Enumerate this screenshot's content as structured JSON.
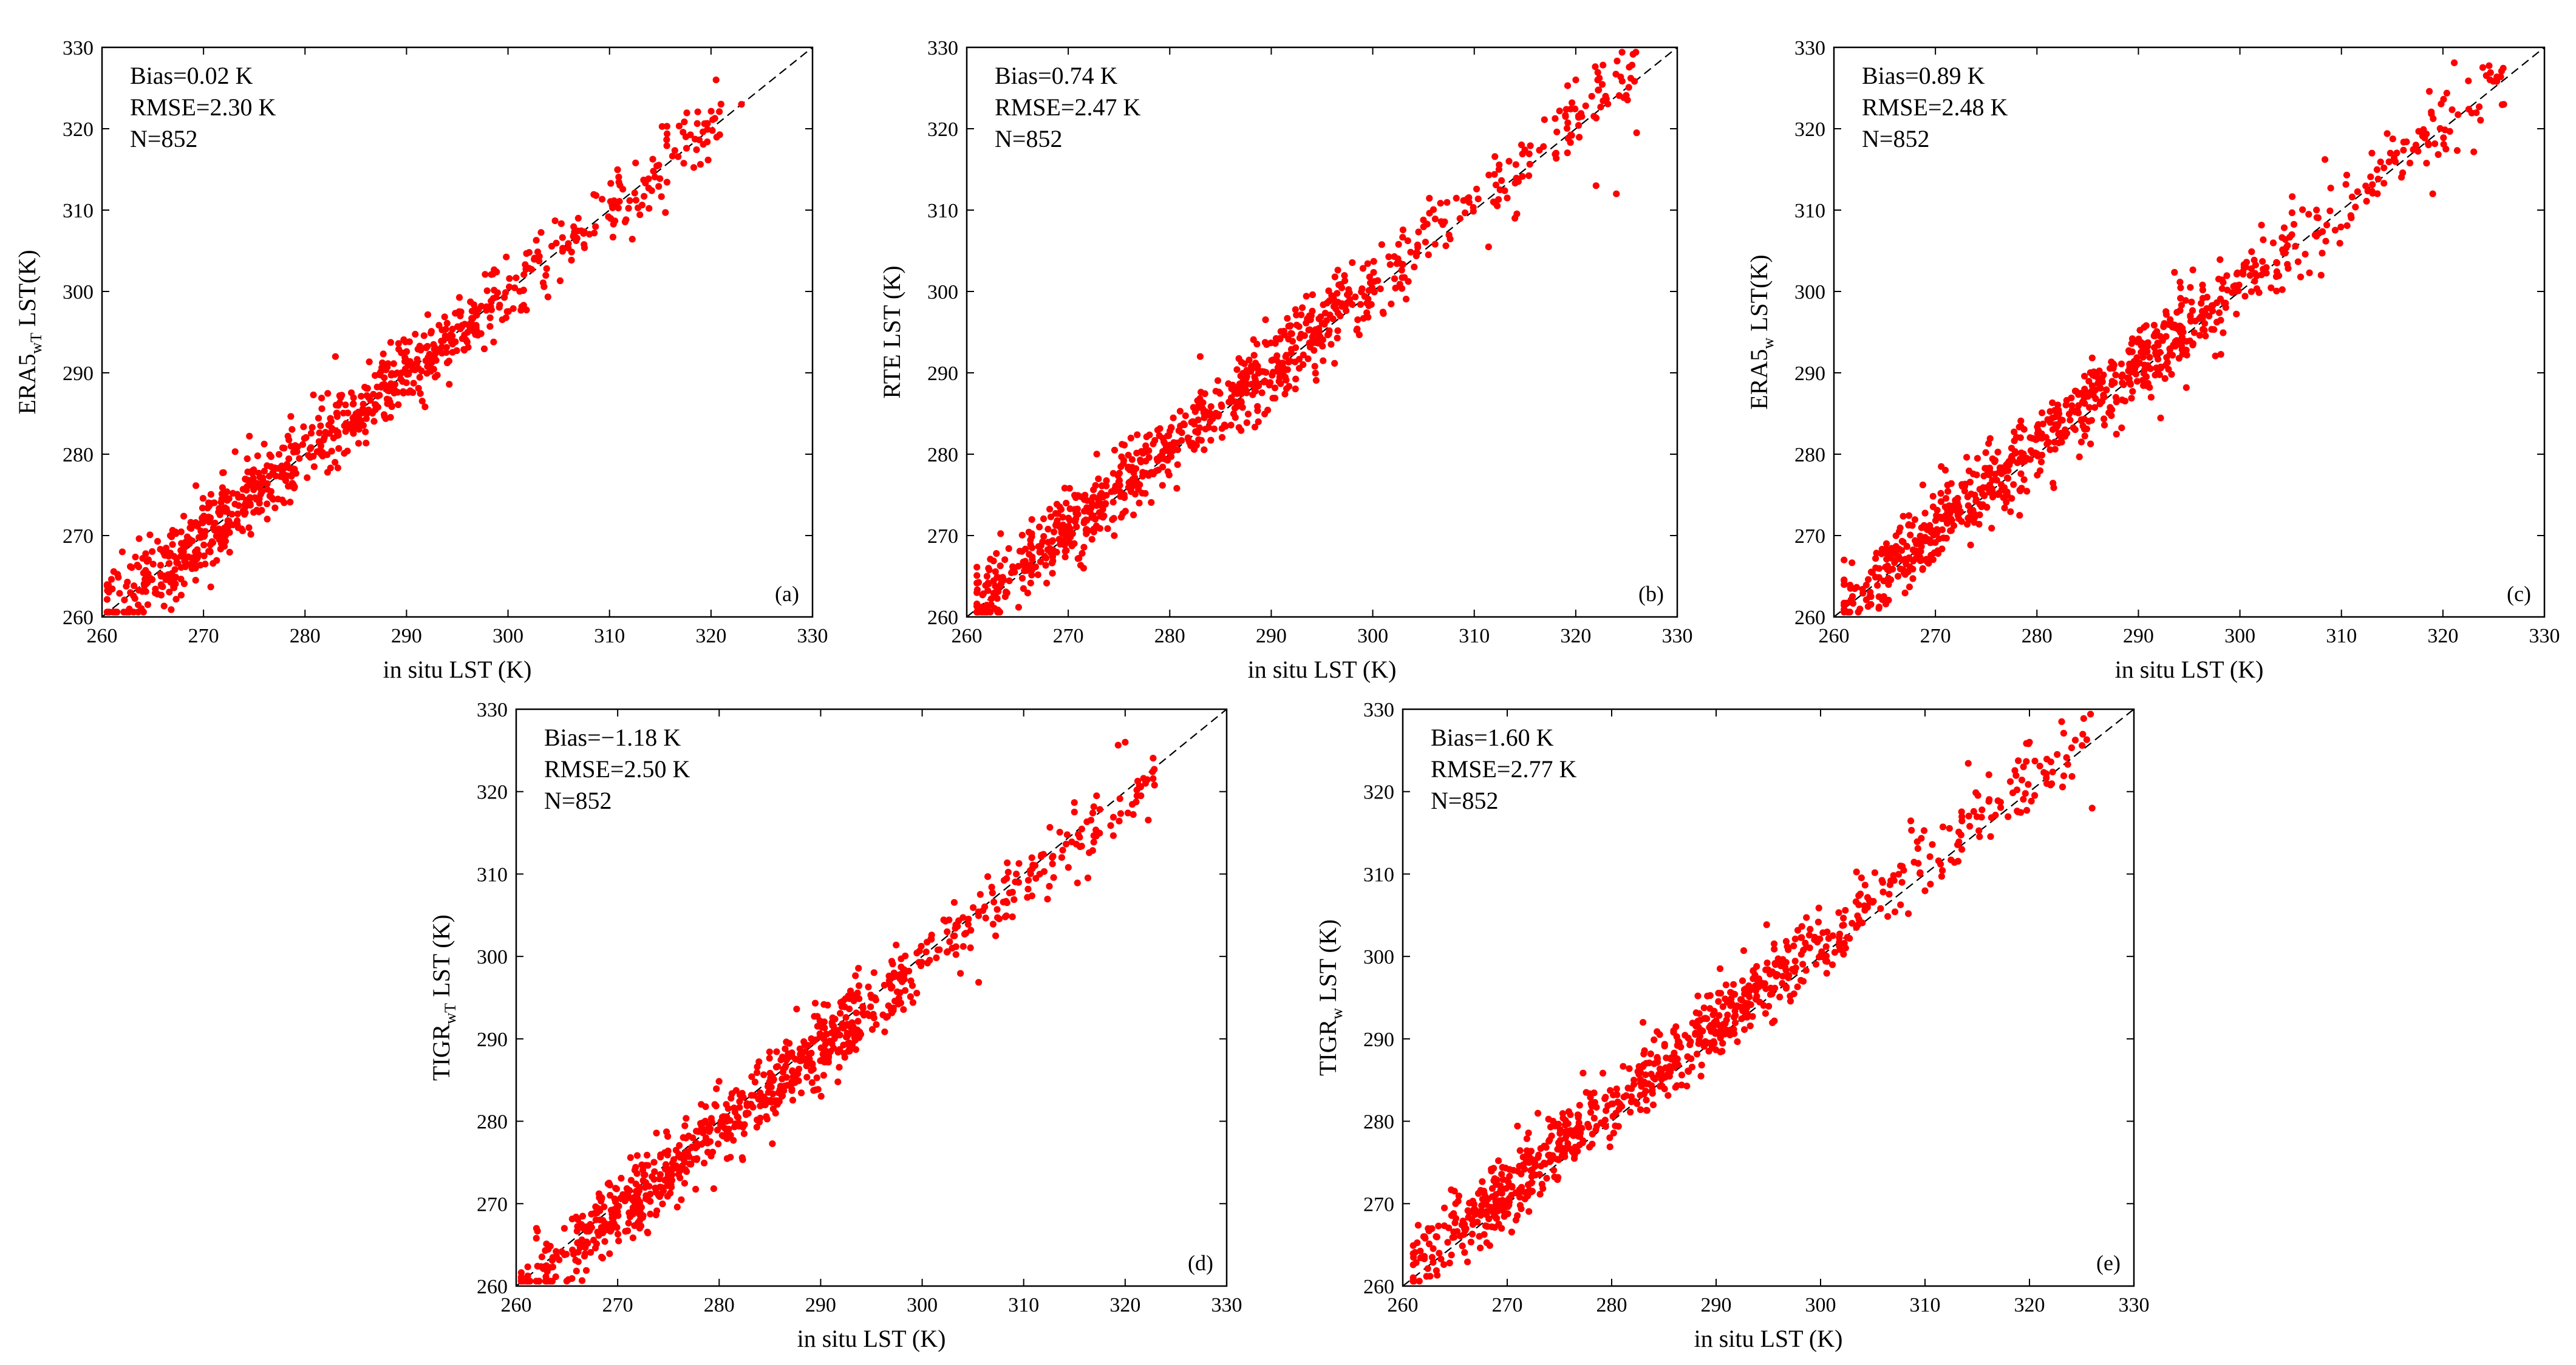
{
  "figure": {
    "description_free": true
  },
  "chart_data": [
    {
      "panel": "(a)",
      "type": "scatter",
      "xlabel": "in situ LST (K)",
      "ylabel_main": "ERA5",
      "ylabel_sub": "wT",
      "ylabel_tail": " LST(K)",
      "xlim": [
        260,
        330
      ],
      "ylim": [
        260,
        330
      ],
      "xticks": [
        "260",
        "270",
        "280",
        "290",
        "300",
        "310",
        "320",
        "330"
      ],
      "yticks": [
        "260",
        "270",
        "280",
        "290",
        "300",
        "310",
        "320",
        "330"
      ],
      "stats": [
        "Bias=0.02 K",
        "RMSE=2.30 K",
        "N=852"
      ],
      "bias": 0.02,
      "rmse": 2.3,
      "n": 852,
      "x_range": [
        260.5,
        321
      ],
      "seed": 11,
      "color": "#ff0000",
      "outliers": [
        [
          320.5,
          326
        ],
        [
          323,
          323
        ],
        [
          262,
          268
        ],
        [
          283,
          292
        ]
      ]
    },
    {
      "panel": "(b)",
      "type": "scatter",
      "xlabel": "in situ LST (K)",
      "ylabel_main": "RTE LST (K)",
      "ylabel_sub": "",
      "ylabel_tail": "",
      "xlim": [
        260,
        330
      ],
      "ylim": [
        260,
        330
      ],
      "xticks": [
        "260",
        "270",
        "280",
        "290",
        "300",
        "310",
        "320",
        "330"
      ],
      "yticks": [
        "260",
        "270",
        "280",
        "290",
        "300",
        "310",
        "320",
        "330"
      ],
      "stats": [
        "Bias=0.74 K",
        "RMSE=2.47 K",
        "N=852"
      ],
      "bias": 0.74,
      "rmse": 2.47,
      "n": 852,
      "x_range": [
        261,
        326
      ],
      "seed": 23,
      "color": "#ff0000",
      "outliers": [
        [
          320,
          326
        ],
        [
          326,
          319.5
        ],
        [
          324,
          312
        ],
        [
          322,
          313
        ],
        [
          283,
          292
        ],
        [
          314,
          309
        ],
        [
          262,
          265
        ]
      ]
    },
    {
      "panel": "(c)",
      "type": "scatter",
      "xlabel": "in situ LST (K)",
      "ylabel_main": "ERA5",
      "ylabel_sub": "w",
      "ylabel_tail": " LST(K)",
      "xlim": [
        260,
        330
      ],
      "ylim": [
        260,
        330
      ],
      "xticks": [
        "260",
        "270",
        "280",
        "290",
        "300",
        "310",
        "320",
        "330"
      ],
      "yticks": [
        "260",
        "270",
        "280",
        "290",
        "300",
        "310",
        "320",
        "330"
      ],
      "stats": [
        "Bias=0.89 K",
        "RMSE=2.48 K",
        "N=852"
      ],
      "bias": 0.89,
      "rmse": 2.48,
      "n": 852,
      "x_range": [
        261,
        326
      ],
      "seed": 37,
      "color": "#ff0000",
      "outliers": [
        [
          313,
          317
        ],
        [
          326,
          323
        ],
        [
          319,
          312
        ],
        [
          261,
          267
        ],
        [
          308,
          302
        ]
      ]
    },
    {
      "panel": "(d)",
      "type": "scatter",
      "xlabel": "in situ LST (K)",
      "ylabel_main": "TIGR",
      "ylabel_sub": "wT",
      "ylabel_tail": " LST (K)",
      "xlim": [
        260,
        330
      ],
      "ylim": [
        260,
        330
      ],
      "xticks": [
        "260",
        "270",
        "280",
        "290",
        "300",
        "310",
        "320",
        "330"
      ],
      "yticks": [
        "260",
        "270",
        "280",
        "290",
        "300",
        "310",
        "320",
        "330"
      ],
      "stats": [
        "Bias=−1.18 K",
        "RMSE=2.50 K",
        "N=852"
      ],
      "bias": -1.18,
      "rmse": 2.5,
      "n": 852,
      "x_range": [
        260.5,
        323
      ],
      "seed": 53,
      "color": "#ff0000",
      "outliers": [
        [
          320,
          326
        ],
        [
          322,
          321
        ],
        [
          262,
          267
        ]
      ]
    },
    {
      "panel": "(e)",
      "type": "scatter",
      "xlabel": "in situ LST (K)",
      "ylabel_main": "TIGR",
      "ylabel_sub": "w",
      "ylabel_tail": " LST (K)",
      "xlim": [
        260,
        330
      ],
      "ylim": [
        260,
        330
      ],
      "xticks": [
        "260",
        "270",
        "280",
        "290",
        "300",
        "310",
        "320",
        "330"
      ],
      "yticks": [
        "260",
        "270",
        "280",
        "290",
        "300",
        "310",
        "320",
        "330"
      ],
      "stats": [
        "Bias=1.60 K",
        "RMSE=2.77 K",
        "N=852"
      ],
      "bias": 1.6,
      "rmse": 2.77,
      "n": 852,
      "x_range": [
        261,
        326
      ],
      "seed": 71,
      "color": "#ff0000",
      "outliers": [
        [
          320,
          326
        ],
        [
          326,
          318
        ],
        [
          283,
          292
        ],
        [
          262,
          266
        ]
      ]
    }
  ]
}
